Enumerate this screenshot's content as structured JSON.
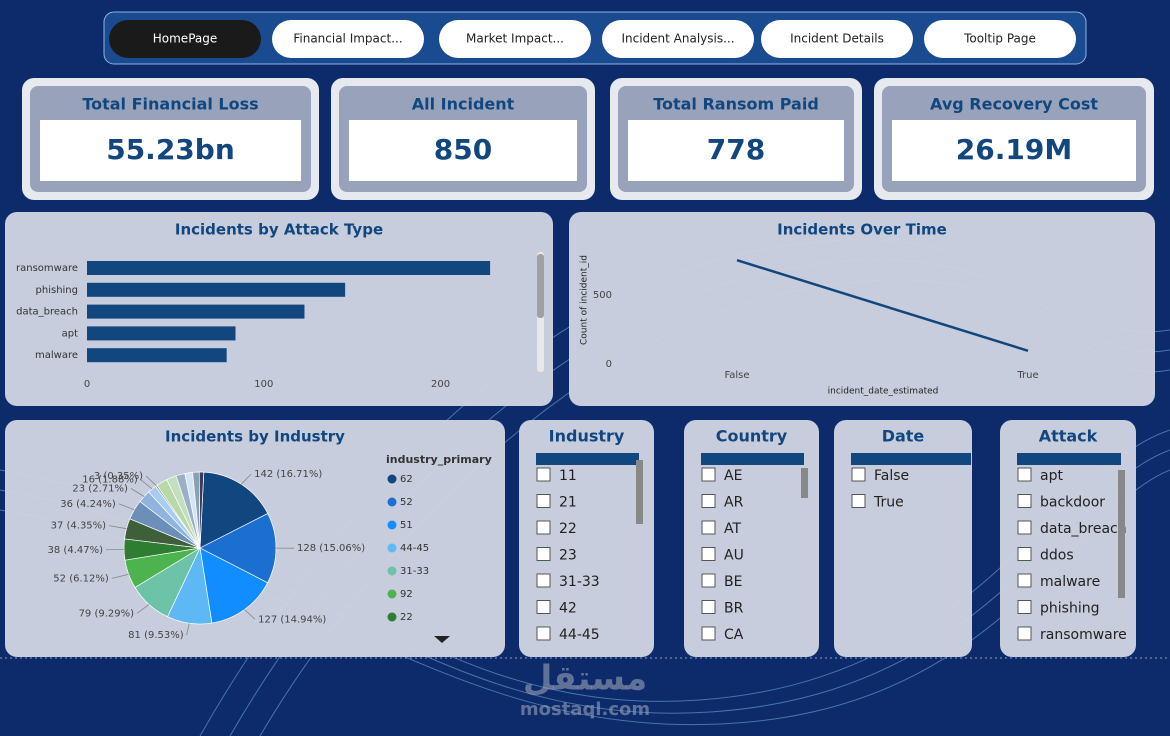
{
  "nav": [
    "HomePage",
    "Financial Impact...",
    "Market Impact...",
    "Incident Analysis...",
    "Incident Details",
    "Tooltip Page"
  ],
  "kpis": [
    {
      "label": "Total Financial Loss",
      "value": "55.23bn"
    },
    {
      "label": "All Incident",
      "value": "850"
    },
    {
      "label": "Total Ransom Paid",
      "value": "778"
    },
    {
      "label": "Avg Recovery Cost",
      "value": "26.19M"
    }
  ],
  "chart_data": [
    {
      "type": "hbar",
      "title": "Incidents by Attack Type",
      "categories": [
        "ransomware",
        "phishing",
        "data_breach",
        "apt",
        "malware"
      ],
      "values": [
        228,
        146,
        123,
        84,
        79
      ],
      "color": "#12467f",
      "xlim": [
        0,
        250
      ],
      "xticks": [
        0,
        100,
        200
      ]
    },
    {
      "type": "line",
      "title": "Incidents Over Time",
      "categories": [
        "False",
        "True"
      ],
      "values": [
        754,
        96
      ],
      "color": "#12467f",
      "x_label": "incident_date_estimated",
      "y_label": "Count of incident_id",
      "ylim": [
        0,
        850
      ],
      "yticks": [
        0,
        500
      ]
    },
    {
      "type": "pie",
      "title": "Incidents by Industry",
      "legend_title": "industry_primary",
      "categories": [
        "62",
        "52",
        "51",
        "44-45",
        "31-33",
        "92",
        "22",
        null,
        null,
        null,
        null,
        null,
        null,
        null,
        null,
        null,
        null,
        null
      ],
      "values": [
        142,
        128,
        127,
        81,
        79,
        52,
        38,
        37,
        36,
        23,
        16,
        3,
        20,
        18,
        16,
        14,
        12,
        8
      ],
      "value_labels": [
        "142 (16.71%)",
        "128 (15.06%)",
        "127 (14.94%)",
        "81 (9.53%)",
        "79 (9.29%)",
        "52 (6.12%)",
        "38 (4.47%)",
        "37 (4.35%)",
        "36 (4.24%)",
        "23 (2.71%)",
        "16 (1.88%)",
        "3 (0.35%)",
        null,
        null,
        null,
        null,
        null,
        null
      ],
      "colors": [
        "#12467f",
        "#1a6fd1",
        "#118dff",
        "#5db8f5",
        "#6cc3a8",
        "#4cb34f",
        "#2e7d32",
        "#3f5e3a",
        "#6b8fb8",
        "#8fb4e0",
        "#a9cdf2",
        "#7a9a6a",
        "#b9d8a8",
        "#c4dfc0",
        "#9bb0c8",
        "#d3e4f5",
        "#8aa0b5",
        "#3a3a5a"
      ]
    }
  ],
  "slicers": [
    {
      "title": "Industry",
      "items": [
        "11",
        "21",
        "22",
        "23",
        "31-33",
        "42",
        "44-45"
      ]
    },
    {
      "title": "Country",
      "items": [
        "AE",
        "AR",
        "AT",
        "AU",
        "BE",
        "BR",
        "CA"
      ]
    },
    {
      "title": "Date",
      "items": [
        "False",
        "True"
      ]
    },
    {
      "title": "Attack",
      "items": [
        "apt",
        "backdoor",
        "data_breach",
        "ddos",
        "malware",
        "phishing",
        "ransomware"
      ]
    }
  ],
  "watermark": {
    "logo": "مستقل",
    "site": "mostaql.com"
  }
}
